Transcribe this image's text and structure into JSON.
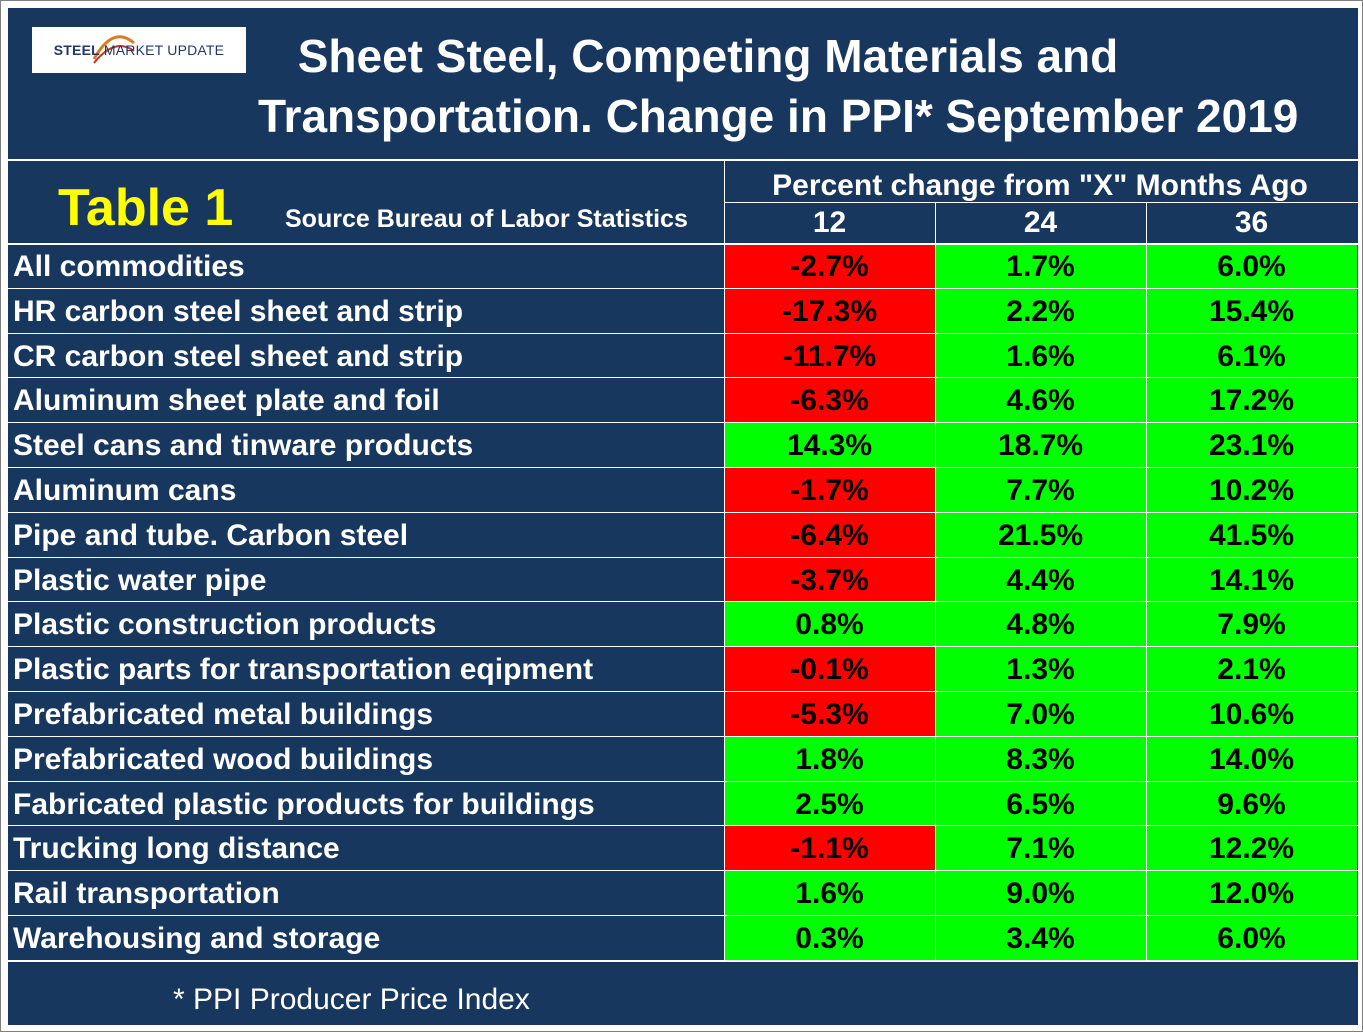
{
  "logo": {
    "bold": "STEEL",
    "rest": "MARKET UPDATE"
  },
  "title": {
    "line1": "Sheet Steel, Competing Materials and",
    "line2": "Transportation. Change in PPI* September 2019"
  },
  "chart_data": {
    "type": "table",
    "table_label": "Table 1",
    "source": "Source Bureau of Labor Statistics",
    "header": "Percent change from \"X\" Months Ago",
    "columns": [
      "12",
      "24",
      "36"
    ],
    "rows": [
      {
        "label": "All commodities",
        "values": [
          "-2.7%",
          "1.7%",
          "6.0%"
        ]
      },
      {
        "label": "HR carbon steel sheet and strip",
        "values": [
          "-17.3%",
          "2.2%",
          "15.4%"
        ]
      },
      {
        "label": "CR carbon steel sheet and strip",
        "values": [
          "-11.7%",
          "1.6%",
          "6.1%"
        ]
      },
      {
        "label": "Aluminum sheet plate and foil",
        "values": [
          "-6.3%",
          "4.6%",
          "17.2%"
        ]
      },
      {
        "label": "Steel cans and tinware products",
        "values": [
          "14.3%",
          "18.7%",
          "23.1%"
        ]
      },
      {
        "label": "Aluminum cans",
        "values": [
          "-1.7%",
          "7.7%",
          "10.2%"
        ]
      },
      {
        "label": "Pipe and tube. Carbon steel",
        "values": [
          "-6.4%",
          "21.5%",
          "41.5%"
        ]
      },
      {
        "label": "Plastic water pipe",
        "values": [
          "-3.7%",
          "4.4%",
          "14.1%"
        ]
      },
      {
        "label": "Plastic construction products",
        "values": [
          "0.8%",
          "4.8%",
          "7.9%"
        ]
      },
      {
        "label": "Plastic parts for transportation eqipment",
        "values": [
          "-0.1%",
          "1.3%",
          "2.1%"
        ]
      },
      {
        "label": "Prefabricated metal buildings",
        "values": [
          "-5.3%",
          "7.0%",
          "10.6%"
        ]
      },
      {
        "label": "Prefabricated wood buildings",
        "values": [
          "1.8%",
          "8.3%",
          "14.0%"
        ]
      },
      {
        "label": "Fabricated plastic products for buildings",
        "values": [
          "2.5%",
          "6.5%",
          "9.6%"
        ]
      },
      {
        "label": "Trucking long distance",
        "values": [
          "-1.1%",
          "7.1%",
          "12.2%"
        ]
      },
      {
        "label": "Rail transportation",
        "values": [
          "1.6%",
          "9.0%",
          "12.0%"
        ]
      },
      {
        "label": "Warehousing and storage",
        "values": [
          "0.3%",
          "3.4%",
          "6.0%"
        ]
      }
    ],
    "colors": {
      "negative": "#ff0000",
      "positive": "#00ff00"
    },
    "footnote": "* PPI  Producer Price Index"
  }
}
